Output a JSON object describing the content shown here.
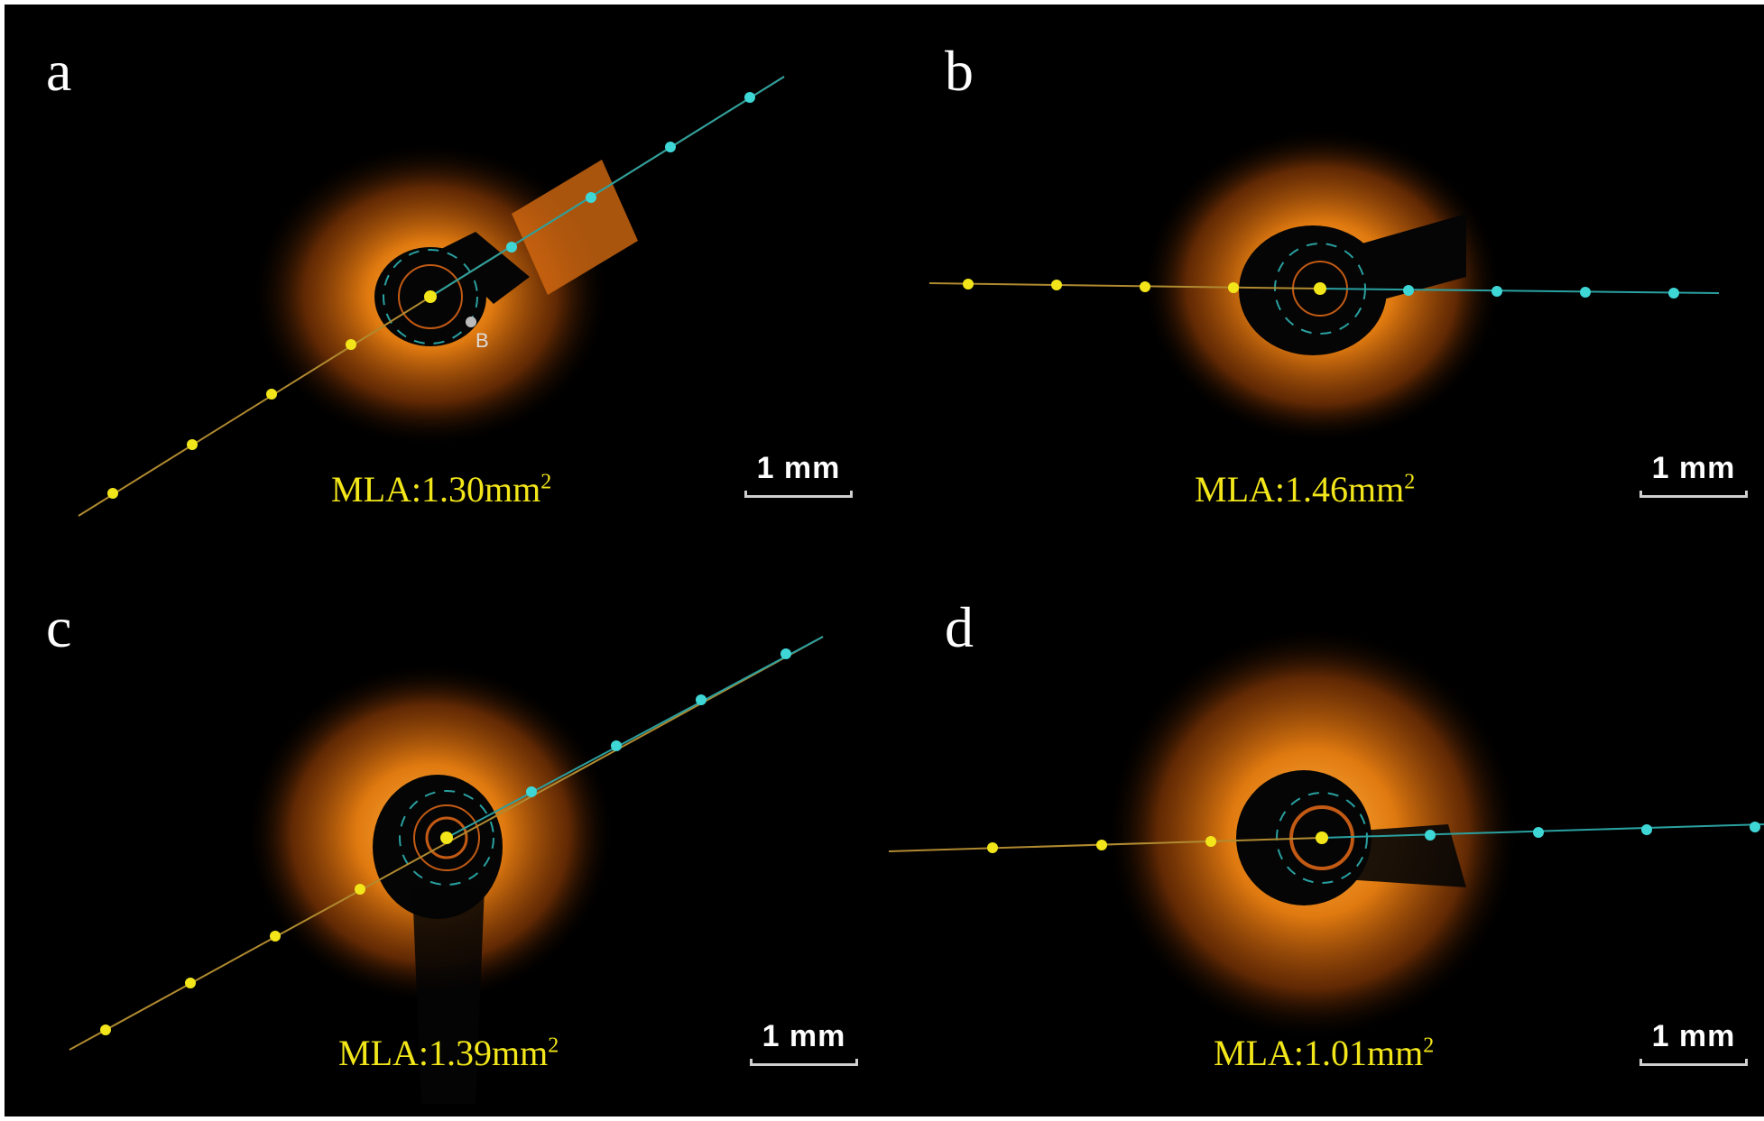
{
  "panels": [
    {
      "id": "a",
      "label": "a",
      "mla_prefix": "MLA:1.30mm",
      "mla_sup": "2",
      "scale_label": "1 mm",
      "marker_label": "B"
    },
    {
      "id": "b",
      "label": "b",
      "mla_prefix": "MLA:1.46mm",
      "mla_sup": "2",
      "scale_label": "1 mm"
    },
    {
      "id": "c",
      "label": "c",
      "mla_prefix": "MLA:1.39mm",
      "mla_sup": "2",
      "scale_label": "1 mm"
    },
    {
      "id": "d",
      "label": "d",
      "mla_prefix": "MLA:1.01mm",
      "mla_sup": "2",
      "scale_label": "1 mm"
    }
  ],
  "colors": {
    "background": "#000000",
    "tissue": "#e07a10",
    "yellow_markers": "#f2e61a",
    "cyan_markers": "#3fd6d6",
    "text_white": "#ffffff"
  }
}
